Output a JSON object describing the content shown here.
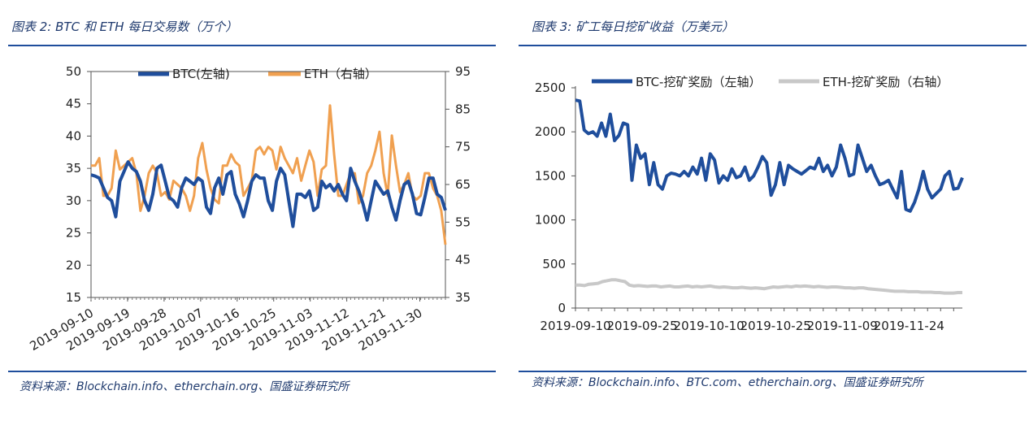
{
  "left": {
    "title": "图表 2:  BTC 和 ETH 每日交易数（万个）",
    "source": "资料来源：Blockchain.info、etherchain.org、国盛证券研究所"
  },
  "right": {
    "title": "图表 3:  矿工每日挖矿收益（万美元）",
    "source": "资料来源：Blockchain.info、BTC.com、etherchain.org、国盛证券研究所"
  },
  "chart_data": [
    {
      "type": "line",
      "title": "BTC 和 ETH 每日交易数（万个）",
      "x_tick_labels": [
        "2019-09-10",
        "2019-09-19",
        "2019-09-28",
        "2019-10-07",
        "2019-10-16",
        "2019-10-25",
        "2019-11-03",
        "2019-11-12",
        "2019-11-21",
        "2019-11-30"
      ],
      "x_start": "2019-09-10",
      "y_left": {
        "min": 15,
        "max": 50,
        "ticks": [
          15,
          20,
          25,
          30,
          35,
          40,
          45,
          50
        ]
      },
      "y_right": {
        "min": 35,
        "max": 95,
        "ticks": [
          35,
          45,
          55,
          65,
          75,
          85,
          95
        ]
      },
      "legend_position": "top",
      "grid": false,
      "series": [
        {
          "name": "BTC(左轴)",
          "axis": "left",
          "color": "#1f4e9c",
          "values": [
            34,
            33.8,
            33.5,
            32,
            30.5,
            30,
            27.5,
            33,
            34.5,
            36,
            35,
            34.5,
            33,
            30,
            28.5,
            31,
            35,
            35.5,
            33,
            30.5,
            30,
            29,
            32,
            33.5,
            33,
            32.5,
            33.5,
            33,
            29,
            28,
            32,
            33.5,
            31,
            34,
            34.5,
            31,
            29.5,
            27.5,
            30,
            33,
            34,
            33.5,
            33.5,
            30,
            28.5,
            33,
            35,
            34,
            30,
            26,
            31,
            31,
            30.5,
            31.5,
            28.5,
            29,
            33,
            32,
            32.5,
            31.5,
            32.5,
            31,
            30,
            35,
            33,
            31.5,
            29.5,
            27,
            30,
            33,
            32,
            31,
            31.5,
            29,
            27,
            30,
            32.5,
            33,
            31,
            28,
            27.8,
            30.5,
            33.5,
            33.5,
            31,
            30.5,
            28.5
          ],
          "label_color": "#1f4e9c"
        },
        {
          "name": "ETH（右轴）",
          "axis": "right",
          "color": "#f0a050",
          "values": [
            70,
            70,
            72,
            62,
            62,
            64,
            74,
            69,
            70,
            71,
            72,
            68,
            58,
            62,
            68,
            70,
            68,
            62,
            63,
            61,
            66,
            65,
            64,
            62,
            58,
            62,
            72,
            76,
            69,
            64,
            61,
            60,
            70,
            70,
            73,
            71,
            70,
            62,
            64,
            66,
            74,
            75,
            73,
            75,
            74,
            69,
            75,
            72,
            70,
            68,
            72,
            66,
            70,
            74,
            71,
            62,
            69,
            70,
            86,
            73,
            62,
            62,
            65,
            68,
            68,
            60,
            62,
            68,
            70,
            74,
            79,
            68,
            62,
            78,
            70,
            63,
            65,
            68,
            62,
            61,
            62,
            68,
            68,
            64,
            62,
            58,
            49
          ]
        }
      ]
    },
    {
      "type": "line",
      "title": "矿工每日挖矿收益（万美元）",
      "x_tick_labels": [
        "2019-09-10",
        "2019-09-25",
        "2019-10-10",
        "2019-10-25",
        "2019-11-09",
        "2019-11-24"
      ],
      "x_start": "2019-09-10",
      "y": {
        "min": 0,
        "max": 2500,
        "ticks": [
          0,
          500,
          1000,
          1500,
          2000,
          2500
        ]
      },
      "legend_position": "top",
      "grid": false,
      "series": [
        {
          "name": "BTC-挖矿奖励（左轴）",
          "color": "#1f4e9c",
          "values": [
            2360,
            2350,
            2020,
            1980,
            2000,
            1950,
            2100,
            1950,
            2200,
            1900,
            1960,
            2100,
            2080,
            1450,
            1850,
            1700,
            1750,
            1400,
            1650,
            1400,
            1350,
            1500,
            1530,
            1520,
            1500,
            1550,
            1500,
            1600,
            1520,
            1700,
            1450,
            1750,
            1680,
            1420,
            1500,
            1450,
            1580,
            1480,
            1500,
            1600,
            1450,
            1500,
            1600,
            1720,
            1650,
            1280,
            1400,
            1650,
            1400,
            1620,
            1580,
            1550,
            1520,
            1560,
            1600,
            1580,
            1700,
            1550,
            1620,
            1500,
            1600,
            1850,
            1700,
            1500,
            1520,
            1850,
            1700,
            1550,
            1620,
            1500,
            1400,
            1420,
            1450,
            1350,
            1250,
            1550,
            1120,
            1100,
            1200,
            1350,
            1550,
            1350,
            1250,
            1300,
            1350,
            1500,
            1550,
            1350,
            1360,
            1480
          ],
          "label_color": "#1f4e9c"
        },
        {
          "name": "ETH-挖矿奖励（右轴）",
          "color": "#c8c8c8",
          "values": [
            260,
            260,
            255,
            270,
            275,
            280,
            300,
            310,
            320,
            320,
            310,
            300,
            260,
            250,
            255,
            250,
            245,
            250,
            250,
            240,
            245,
            250,
            240,
            240,
            245,
            250,
            240,
            245,
            240,
            245,
            250,
            240,
            235,
            240,
            235,
            230,
            230,
            235,
            230,
            225,
            230,
            225,
            220,
            230,
            240,
            235,
            240,
            245,
            240,
            250,
            245,
            250,
            245,
            240,
            245,
            240,
            235,
            240,
            240,
            235,
            230,
            230,
            225,
            230,
            230,
            220,
            215,
            210,
            205,
            200,
            195,
            190,
            190,
            190,
            185,
            185,
            185,
            180,
            180,
            180,
            175,
            175,
            170,
            170,
            170,
            175,
            175
          ]
        }
      ]
    }
  ]
}
